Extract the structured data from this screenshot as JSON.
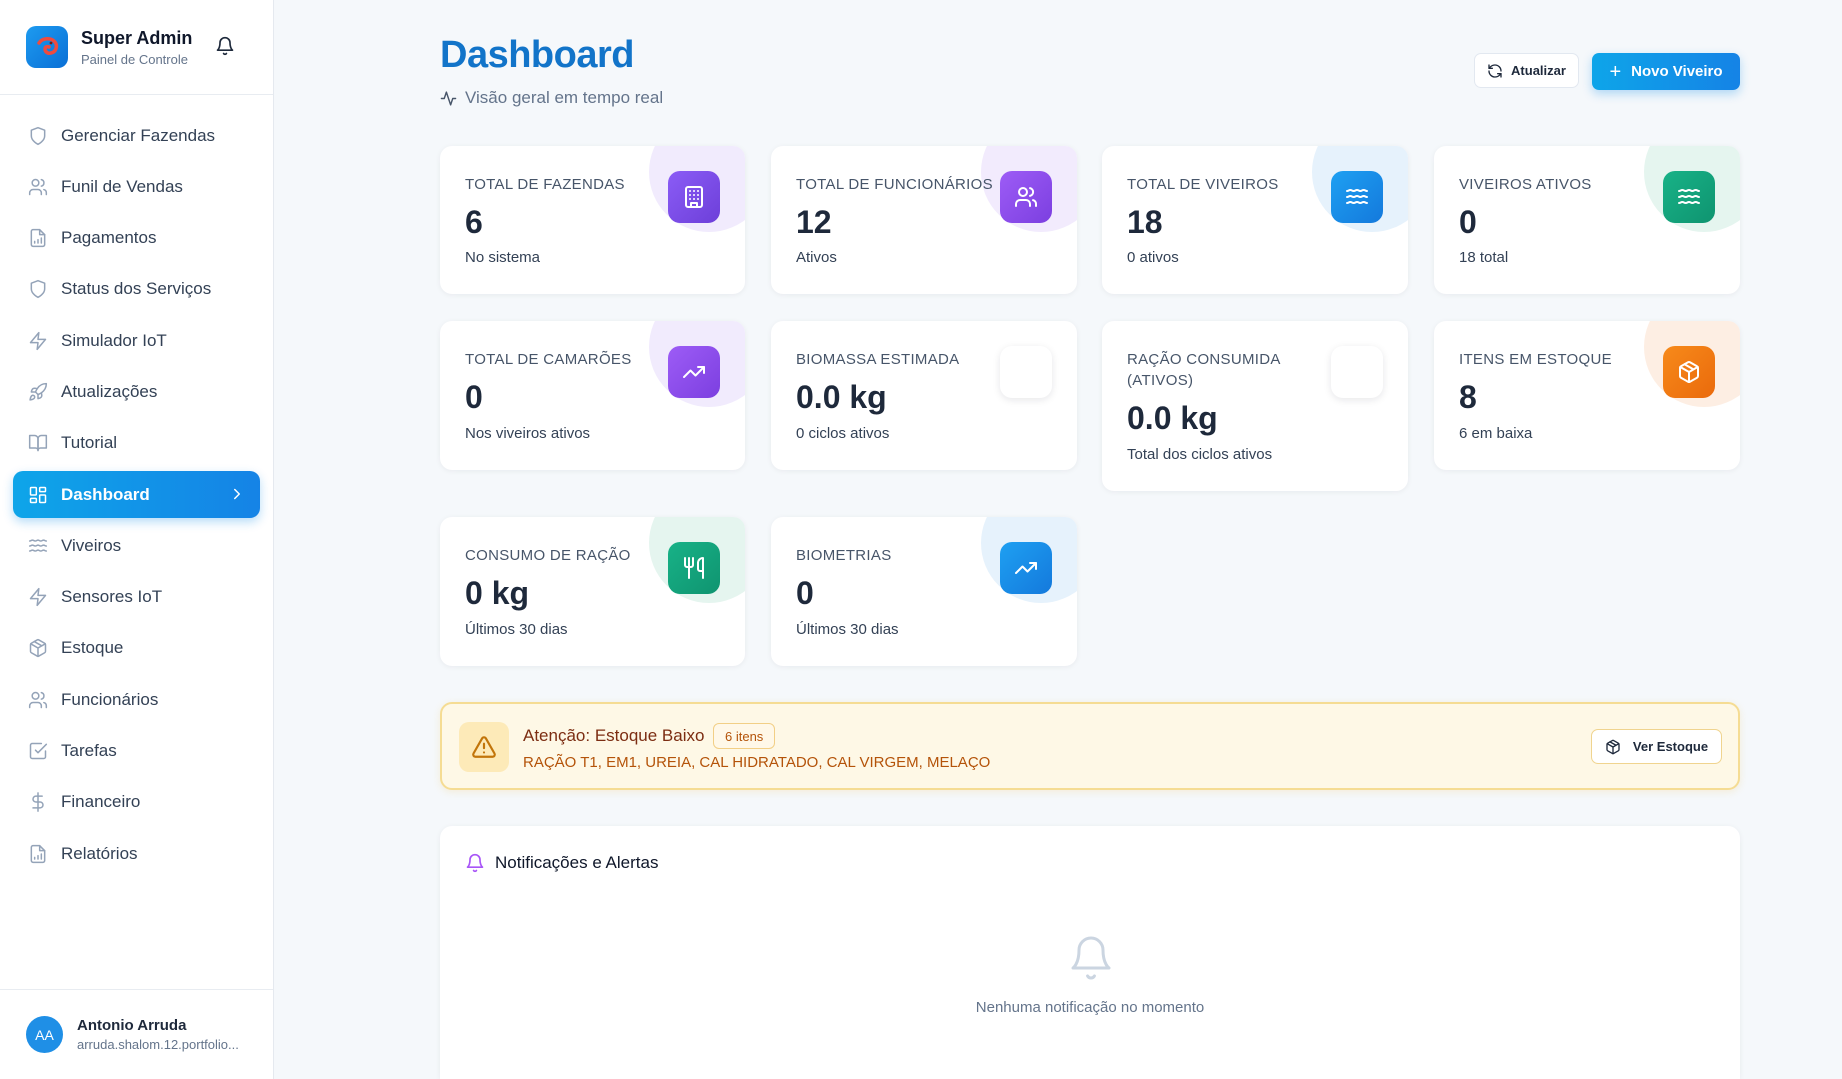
{
  "sidebar": {
    "brand_title": "Super Admin",
    "brand_sub": "Painel de Controle",
    "items": [
      {
        "label": "Gerenciar Fazendas",
        "icon": "shield-icon"
      },
      {
        "label": "Funil de Vendas",
        "icon": "users-icon"
      },
      {
        "label": "Pagamentos",
        "icon": "file-chart-icon"
      },
      {
        "label": "Status dos Serviços",
        "icon": "shield-icon"
      },
      {
        "label": "Simulador IoT",
        "icon": "zap-icon"
      },
      {
        "label": "Atualizações",
        "icon": "rocket-icon"
      },
      {
        "label": "Tutorial",
        "icon": "book-icon"
      },
      {
        "label": "Dashboard",
        "icon": "grid-icon",
        "active": true
      },
      {
        "label": "Viveiros",
        "icon": "waves-icon"
      },
      {
        "label": "Sensores IoT",
        "icon": "zap-icon"
      },
      {
        "label": "Estoque",
        "icon": "package-icon"
      },
      {
        "label": "Funcionários",
        "icon": "users-icon"
      },
      {
        "label": "Tarefas",
        "icon": "check-square-icon"
      },
      {
        "label": "Financeiro",
        "icon": "dollar-icon"
      },
      {
        "label": "Relatórios",
        "icon": "file-chart-icon"
      }
    ],
    "user": {
      "initials": "AA",
      "name": "Antonio Arruda",
      "email": "arruda.shalom.12.portfolio..."
    }
  },
  "header": {
    "title": "Dashboard",
    "subtitle": "Visão geral em tempo real",
    "refresh_label": "Atualizar",
    "new_label": "Novo Viveiro"
  },
  "cards": [
    {
      "label": "TOTAL DE FAZENDAS",
      "value": "6",
      "foot": "No sistema",
      "icon": "building-icon",
      "color": "#7c4dea"
    },
    {
      "label": "TOTAL DE FUNCIONÁRIOS",
      "value": "12",
      "foot": "Ativos",
      "icon": "users-icon",
      "color": "#8b4def"
    },
    {
      "label": "TOTAL DE VIVEIROS",
      "value": "18",
      "foot": "0 ativos",
      "icon": "waves-icon",
      "color": "#1d8fe8"
    },
    {
      "label": "VIVEIROS ATIVOS",
      "value": "0",
      "foot": "18 total",
      "icon": "waves-icon",
      "color": "#14a57a"
    },
    {
      "label": "TOTAL DE CAMARÕES",
      "value": "0",
      "foot": "Nos viveiros ativos",
      "icon": "trending-up-icon",
      "color": "#8b4def"
    },
    {
      "label": "BIOMASSA ESTIMADA",
      "value": "0.0 kg",
      "foot": "0 ciclos ativos",
      "icon": "blank-icon",
      "color": "#ffffff"
    },
    {
      "label_line1": "RAÇÃO CONSUMIDA",
      "label_line2": "(ATIVOS)",
      "value": "0.0 kg",
      "foot": "Total dos ciclos ativos",
      "icon": "blank-icon",
      "color": "#ffffff"
    },
    {
      "label": "ITENS EM ESTOQUE",
      "value": "8",
      "foot": "6 em baixa",
      "icon": "package-icon",
      "color": "#f07a12"
    },
    {
      "label": "CONSUMO DE RAÇÃO",
      "value": "0 kg",
      "foot": "Últimos 30 dias",
      "icon": "utensils-icon",
      "color": "#14a57a"
    },
    {
      "label": "BIOMETRIAS",
      "value": "0",
      "foot": "Últimos 30 dias",
      "icon": "trending-up-icon",
      "color": "#1d8fe8"
    }
  ],
  "alert": {
    "title": "Atenção: Estoque Baixo",
    "badge": "6 itens",
    "items": "RAÇÃO T1, EM1, UREIA, CAL HIDRATADO, CAL VIRGEM, MELAÇO",
    "button": "Ver Estoque"
  },
  "notifications": {
    "title": "Notificações e Alertas",
    "empty": "Nenhuma notificação no momento"
  }
}
